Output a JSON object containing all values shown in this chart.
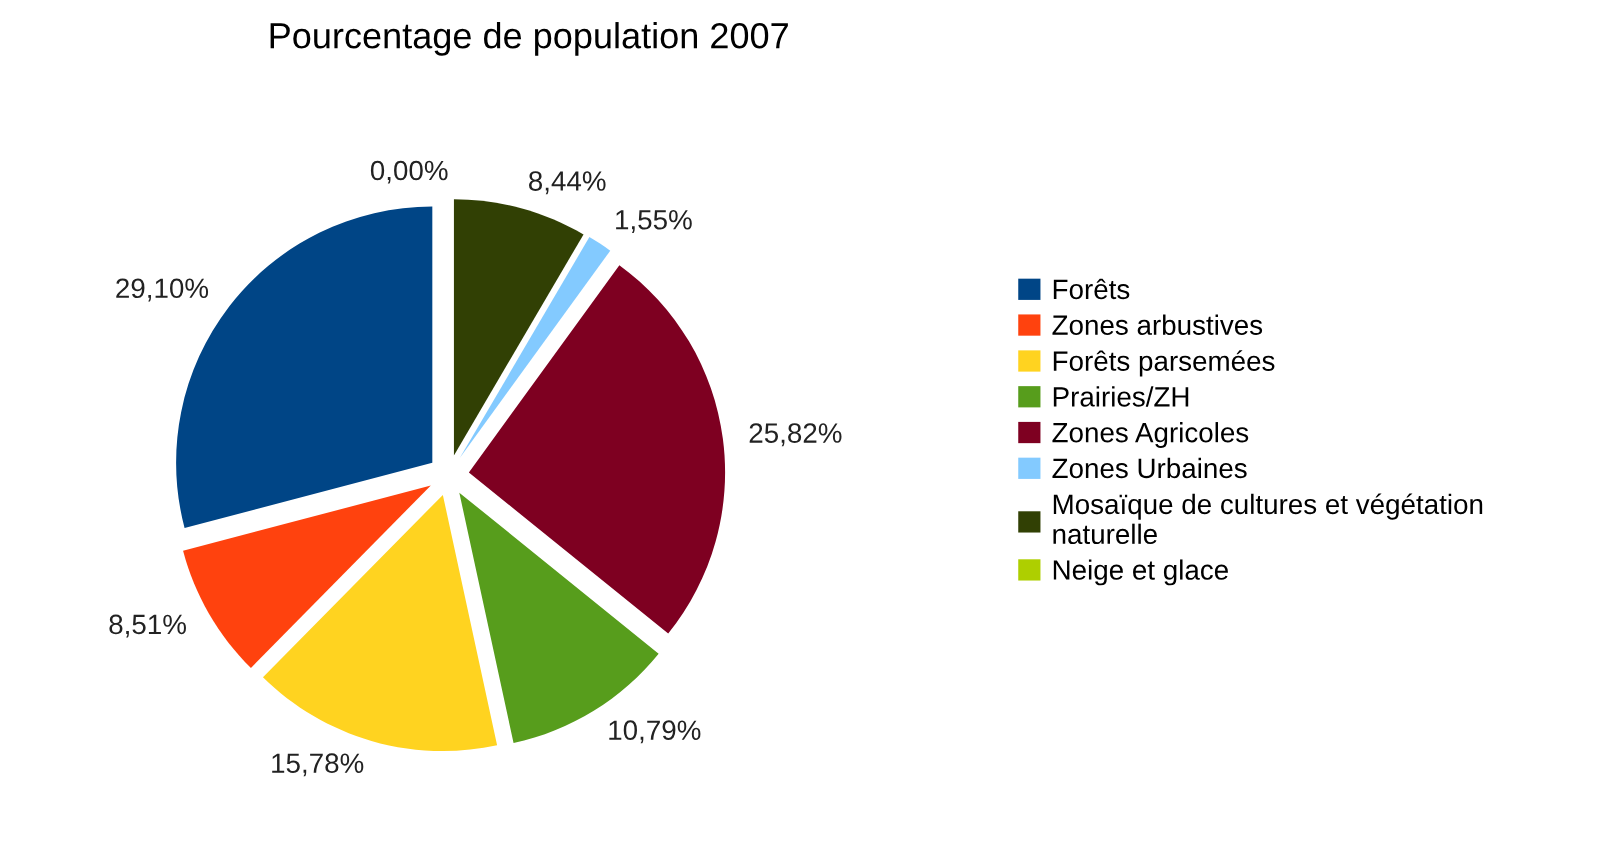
{
  "chart_data": {
    "type": "pie",
    "title": "Pourcentage de population 2007",
    "categories": [
      "Forêts",
      "Zones arbustives",
      "Forêts parsemées",
      "Prairies/ZH",
      "Zones Agricoles",
      "Zones Urbaines",
      "Mosaïque de cultures et végétation\nnaturelle",
      "Neige et glace"
    ],
    "values": [
      29.1,
      8.51,
      15.78,
      10.79,
      25.82,
      1.55,
      8.44,
      0.0
    ],
    "value_labels": [
      "29,10%",
      "8,51%",
      "15,78%",
      "10,79%",
      "25,82%",
      "1,55%",
      "8,44%",
      "0,00%"
    ],
    "colors": [
      "#004586",
      "#ff420e",
      "#ffd320",
      "#579d1c",
      "#7e0021",
      "#83caff",
      "#314004",
      "#aecf00"
    ],
    "legend": "right"
  }
}
